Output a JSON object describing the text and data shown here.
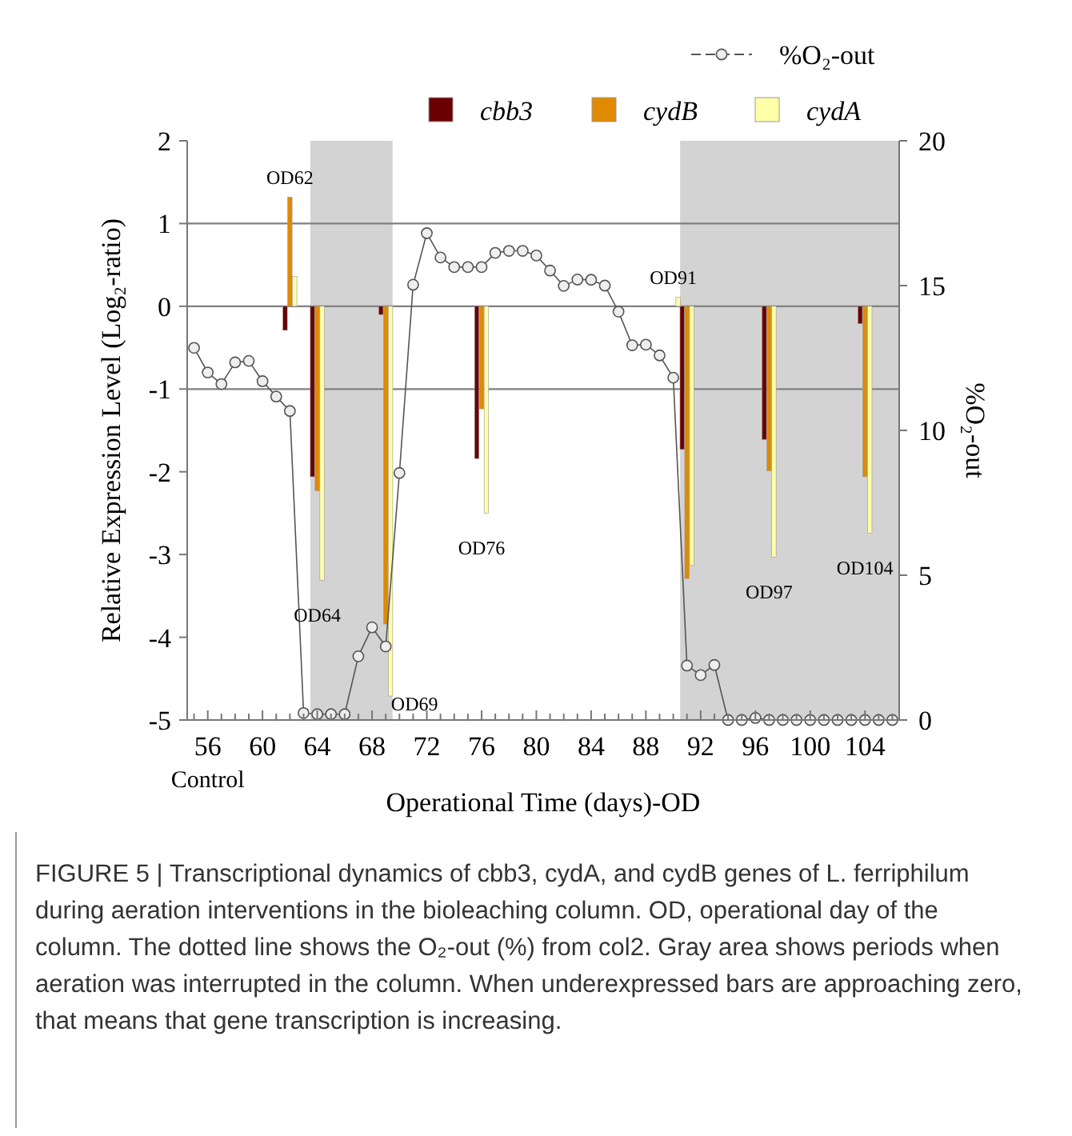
{
  "chart_data": {
    "type": "bar",
    "xlabel": "Operational Time (days)-OD",
    "ylabel": "Relative Expression Level (Log₂-ratio)",
    "y2label": "%O₂-out",
    "xlim": [
      54.5,
      106.5
    ],
    "ylim": [
      -5,
      2
    ],
    "yticks": [
      -5,
      -4,
      -3,
      -2,
      -1,
      0,
      1,
      2
    ],
    "y2lim": [
      0,
      20
    ],
    "y2ticks": [
      0,
      5,
      10,
      15,
      20
    ],
    "xticks": [
      {
        "value": 55,
        "label": null
      },
      56,
      {
        "value": 57,
        "label": null
      },
      {
        "value": 58,
        "label": null
      },
      {
        "value": 59,
        "label": null
      },
      60,
      {
        "value": 61,
        "label": null
      },
      {
        "value": 62,
        "label": null
      },
      {
        "value": 63,
        "label": null
      },
      64,
      {
        "value": 65,
        "label": null
      },
      {
        "value": 66,
        "label": null
      },
      {
        "value": 67,
        "label": null
      },
      68,
      {
        "value": 69,
        "label": null
      },
      {
        "value": 70,
        "label": null
      },
      {
        "value": 71,
        "label": null
      },
      72,
      {
        "value": 73,
        "label": null
      },
      {
        "value": 74,
        "label": null
      },
      {
        "value": 75,
        "label": null
      },
      76,
      {
        "value": 77,
        "label": null
      },
      {
        "value": 78,
        "label": null
      },
      {
        "value": 79,
        "label": null
      },
      80,
      {
        "value": 81,
        "label": null
      },
      {
        "value": 82,
        "label": null
      },
      {
        "value": 83,
        "label": null
      },
      84,
      {
        "value": 85,
        "label": null
      },
      {
        "value": 86,
        "label": null
      },
      {
        "value": 87,
        "label": null
      },
      88,
      {
        "value": 89,
        "label": null
      },
      {
        "value": 90,
        "label": null
      },
      {
        "value": 91,
        "label": null
      },
      92,
      {
        "value": 93,
        "label": null
      },
      {
        "value": 94,
        "label": null
      },
      {
        "value": 95,
        "label": null
      },
      96,
      {
        "value": 97,
        "label": null
      },
      {
        "value": 98,
        "label": null
      },
      {
        "value": 99,
        "label": null
      },
      100,
      {
        "value": 101,
        "label": null
      },
      {
        "value": 102,
        "label": null
      },
      {
        "value": 103,
        "label": null
      },
      104,
      {
        "value": 105,
        "label": null
      },
      {
        "value": 106,
        "label": null
      }
    ],
    "legend": "top right",
    "grid": false,
    "bands": [
      {
        "axis": "x",
        "from": 63.5,
        "to": 69.5,
        "color": "#d3d3d3"
      },
      {
        "axis": "x",
        "from": 90.5,
        "to": 106.5,
        "color": "#d3d3d3"
      }
    ],
    "ref_lines": [
      {
        "axis": "y",
        "value": 1,
        "color": "#808080"
      },
      {
        "axis": "y",
        "value": 0,
        "color": "#808080"
      },
      {
        "axis": "y",
        "value": -1,
        "color": "#808080"
      }
    ],
    "series": [
      {
        "name": "cbb3",
        "color": "#6b0000",
        "x": [
          62,
          64,
          69,
          76,
          91,
          97,
          104
        ],
        "values": [
          -0.29,
          -2.06,
          -0.1,
          -1.84,
          -1.73,
          -1.61,
          -0.21
        ]
      },
      {
        "name": "cydB",
        "color": "#e08a00",
        "x": [
          62,
          64,
          69,
          76,
          91,
          97,
          104
        ],
        "values": [
          1.32,
          -2.23,
          -3.84,
          -1.24,
          -3.29,
          -1.99,
          -2.06
        ]
      },
      {
        "name": "cydA",
        "color": "#ffffa8",
        "x": [
          62,
          64,
          69,
          76,
          90,
          91,
          97,
          104
        ],
        "values": [
          0.36,
          -3.31,
          -4.71,
          -2.5,
          0.11,
          -3.13,
          -3.03,
          -2.74
        ]
      },
      {
        "name": "%O₂-out",
        "type": "line",
        "axis": "y2",
        "color": "#555555",
        "marker": "circle",
        "line_style": "solid",
        "x": [
          55,
          56,
          57,
          58,
          59,
          60,
          61,
          62,
          63,
          64,
          65,
          66,
          67,
          68,
          69,
          70,
          71,
          72,
          73,
          74,
          75,
          76,
          77,
          78,
          79,
          80,
          81,
          82,
          83,
          84,
          85,
          86,
          87,
          88,
          89,
          90,
          91,
          92,
          93,
          94,
          95,
          96,
          97,
          98,
          99,
          100,
          101,
          102,
          103,
          104,
          105,
          106
        ],
        "values": [
          12.85,
          12.0,
          11.6,
          12.35,
          12.4,
          11.7,
          11.17,
          10.67,
          0.24,
          0.2,
          0.2,
          0.2,
          2.2,
          3.2,
          2.54,
          8.53,
          15.03,
          16.81,
          15.97,
          15.64,
          15.64,
          15.64,
          16.13,
          16.2,
          16.2,
          16.04,
          15.52,
          14.99,
          15.21,
          15.2,
          15.0,
          14.1,
          12.94,
          12.96,
          12.59,
          11.82,
          1.88,
          1.55,
          1.9,
          0,
          0,
          0.07,
          0,
          0,
          0,
          0,
          0,
          0,
          0,
          0,
          0,
          0
        ]
      }
    ],
    "annotations": [
      {
        "text": "OD62",
        "x": 62,
        "y": 1.32
      },
      {
        "text": "OD64",
        "x": 64,
        "y": -3.31
      },
      {
        "text": "OD69",
        "x": 69,
        "y": -4.71
      },
      {
        "text": "OD76",
        "x": 76,
        "y": -2.5
      },
      {
        "text": "OD91",
        "x": 90,
        "y": 0.11
      },
      {
        "text": "OD97",
        "x": 97,
        "y": -3.03
      },
      {
        "text": "OD104",
        "x": 104,
        "y": -2.74
      },
      "Control",
      "FIGURE 5 | Transcriptional dynamics of cbb3, cydA, and cydB genes of L. ferriphilum during aeration interventions in the bioleaching column. OD, operational day of the column. The dotted line shows the O₂-out (%) from col2. Gray area shows periods when aeration was interrupted in the column. When underexpressed bars are approaching zero, that means that gene transcription is increasing."
    ]
  }
}
